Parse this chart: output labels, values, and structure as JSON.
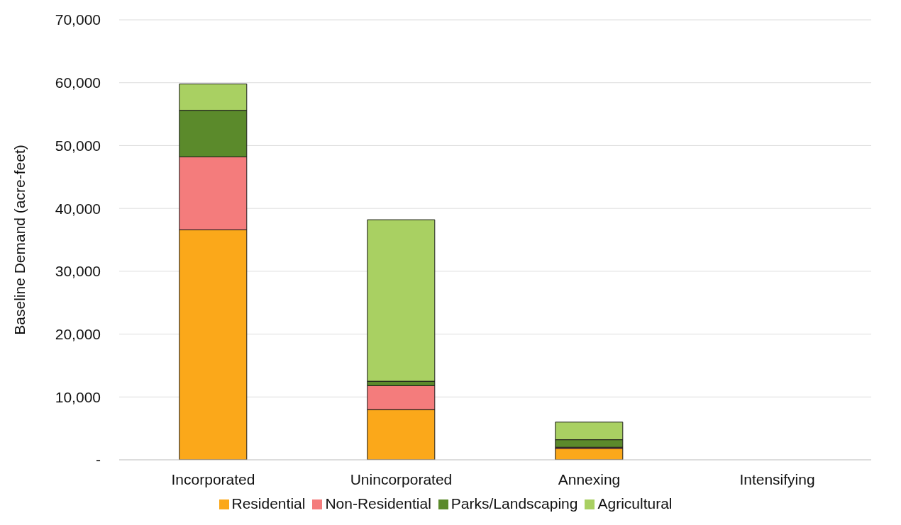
{
  "chart_data": {
    "type": "bar",
    "stacked": true,
    "ylabel": "Baseline Demand (acre-feet)",
    "categories": [
      "Incorporated",
      "Unincorporated",
      "Annexing",
      "Intensifying"
    ],
    "series": [
      {
        "name": "Residential",
        "color": "#fba81a",
        "values": [
          36600,
          8000,
          1800,
          0
        ]
      },
      {
        "name": "Non-Residential",
        "color": "#f47c7c",
        "values": [
          11600,
          3800,
          200,
          0
        ]
      },
      {
        "name": "Parks/Landscaping",
        "color": "#5b8a2b",
        "values": [
          7400,
          700,
          1200,
          0
        ]
      },
      {
        "name": "Agricultural",
        "color": "#a9d062",
        "values": [
          4200,
          25700,
          2800,
          0
        ]
      }
    ],
    "ylim": [
      0,
      70000
    ],
    "yticks": [
      {
        "value": 0,
        "label": "-"
      },
      {
        "value": 10000,
        "label": "10,000"
      },
      {
        "value": 20000,
        "label": "20,000"
      },
      {
        "value": 30000,
        "label": "30,000"
      },
      {
        "value": 40000,
        "label": "40,000"
      },
      {
        "value": 50000,
        "label": "50,000"
      },
      {
        "value": 60000,
        "label": "60,000"
      },
      {
        "value": 70000,
        "label": "70,000"
      }
    ],
    "grid": "y",
    "legend": "bottom"
  }
}
